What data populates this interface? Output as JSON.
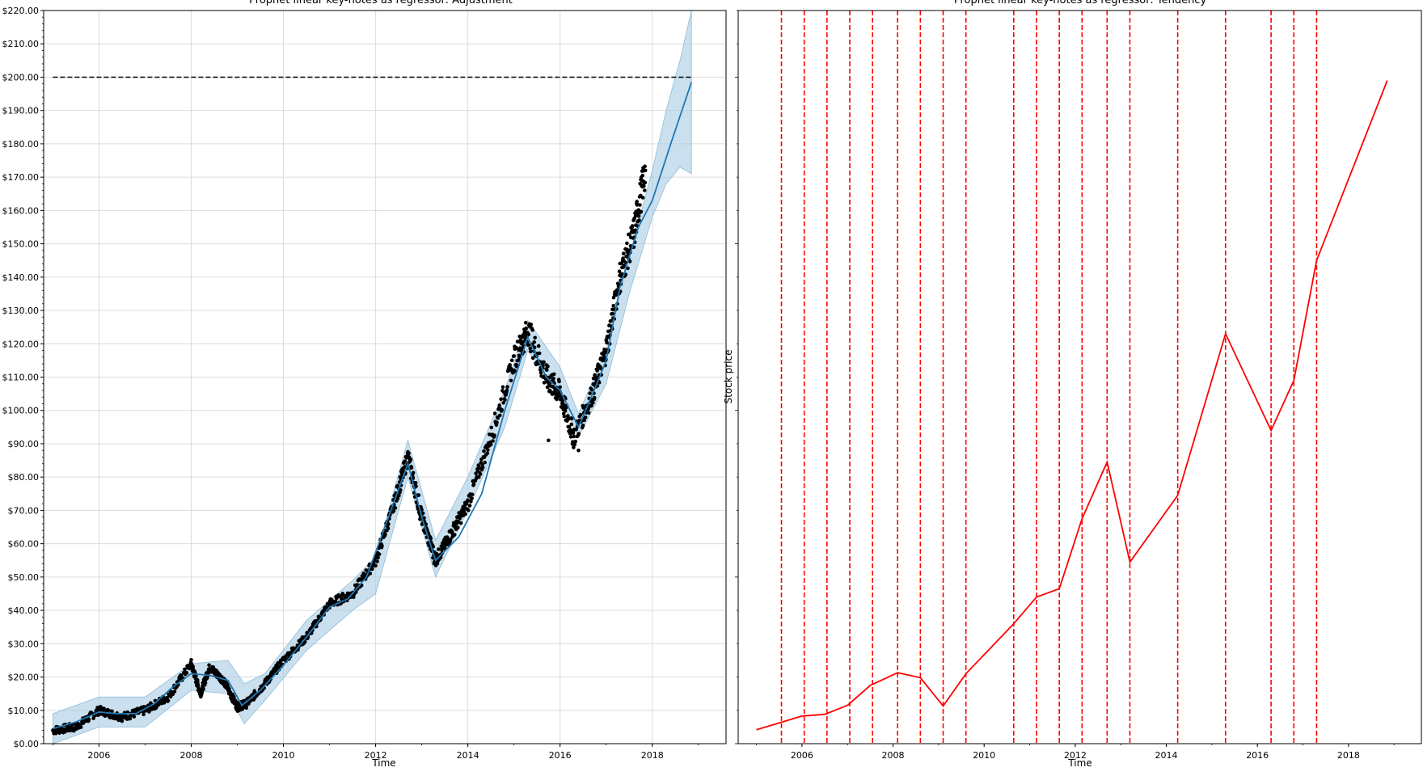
{
  "chart_data": [
    {
      "type": "line",
      "title": "Prophet linear key-notes as regressor: Adjustment",
      "xlabel": "Time",
      "ylabel": "",
      "xlim": [
        2004.8,
        2019.6
      ],
      "ylim": [
        0,
        220
      ],
      "grid": true,
      "y_tick_values": [
        0,
        10,
        20,
        30,
        40,
        50,
        60,
        70,
        80,
        90,
        100,
        110,
        120,
        130,
        140,
        150,
        160,
        170,
        180,
        190,
        200,
        210,
        220
      ],
      "y_tick_labels": [
        "$0.00",
        "$10.00",
        "$20.00",
        "$30.00",
        "$40.00",
        "$50.00",
        "$60.00",
        "$70.00",
        "$80.00",
        "$90.00",
        "$100.00",
        "$110.00",
        "$120.00",
        "$130.00",
        "$140.00",
        "$150.00",
        "$160.00",
        "$170.00",
        "$180.00",
        "$190.00",
        "$200.00",
        "$210.00",
        "$220.00"
      ],
      "x_tick_values": [
        2006,
        2008,
        2010,
        2012,
        2014,
        2016,
        2018
      ],
      "x_tick_labels": [
        "2006",
        "2008",
        "2010",
        "2012",
        "2014",
        "2016",
        "2018"
      ],
      "forecast_line": {
        "color": "#1f77b4",
        "x": [
          2005.0,
          2005.5,
          2006.0,
          2006.4,
          2006.8,
          2007.2,
          2007.6,
          2008.0,
          2008.4,
          2008.8,
          2009.1,
          2009.5,
          2010.0,
          2010.5,
          2011.0,
          2011.4,
          2011.8,
          2012.2,
          2012.7,
          2013.0,
          2013.3,
          2013.8,
          2014.3,
          2014.8,
          2015.3,
          2015.7,
          2016.0,
          2016.4,
          2016.8,
          2017.0,
          2017.3,
          2017.7,
          2018.0,
          2018.4,
          2018.85
        ],
        "y": [
          4.5,
          6.5,
          9.5,
          9.0,
          9.0,
          12.0,
          17.0,
          21.0,
          20.5,
          19.0,
          11.5,
          16.0,
          23.5,
          32.0,
          41.0,
          43.5,
          50.0,
          65.0,
          84.0,
          68.0,
          55.0,
          62.0,
          75.0,
          100.0,
          122.0,
          110.0,
          106.0,
          95.0,
          108.0,
          115.0,
          137.0,
          155.0,
          163.0,
          180.0,
          198.5
        ]
      },
      "uncertainty_band": {
        "color": "#a6cbe3",
        "x": [
          2005.0,
          2006.0,
          2007.0,
          2008.0,
          2008.8,
          2009.15,
          2009.6,
          2010.5,
          2011.5,
          2012.0,
          2012.7,
          2013.3,
          2014.0,
          2014.8,
          2015.3,
          2016.0,
          2016.4,
          2017.0,
          2017.5,
          2018.0,
          2018.3,
          2018.6,
          2018.85
        ],
        "upper": [
          9,
          14,
          14,
          24,
          25,
          18,
          21,
          37,
          49,
          56,
          91,
          61,
          80,
          106,
          127,
          113,
          99,
          118,
          146,
          172,
          190,
          205,
          220
        ],
        "lower": [
          0,
          5,
          5,
          16,
          15,
          6,
          13,
          28,
          40,
          45,
          80,
          50,
          70,
          95,
          118,
          104,
          92,
          108,
          135,
          158,
          168,
          173,
          171
        ]
      },
      "cap_line": {
        "y": 200,
        "x_start": 2005.0,
        "x_end": 2018.85,
        "style": "dashed",
        "color": "#000000"
      },
      "actual_points_series": {
        "color": "#000000",
        "x": [
          2005.0,
          2005.5,
          2006.0,
          2006.5,
          2007.0,
          2007.5,
          2008.0,
          2008.2,
          2008.4,
          2008.7,
          2009.0,
          2009.2,
          2009.6,
          2010.0,
          2010.5,
          2011.0,
          2011.5,
          2012.0,
          2012.4,
          2012.7,
          2013.0,
          2013.3,
          2013.6,
          2014.0,
          2014.5,
          2015.0,
          2015.3,
          2015.7,
          2016.0,
          2016.3,
          2016.7,
          2017.0,
          2017.3,
          2017.6,
          2017.85
        ],
        "y": [
          4.0,
          5.0,
          10.0,
          8.0,
          10.0,
          14.0,
          24.0,
          15.0,
          23.0,
          19.0,
          11.0,
          12.0,
          18.0,
          25.0,
          32.0,
          42.0,
          45.0,
          55.0,
          72.0,
          86.0,
          68.0,
          55.0,
          62.0,
          72.0,
          92.0,
          115.0,
          124.0,
          110.0,
          105.0,
          92.0,
          105.0,
          118.0,
          140.0,
          153.0,
          172.0
        ],
        "outliers": [
          [
            2015.75,
            91
          ],
          [
            2016.4,
            88
          ]
        ]
      }
    },
    {
      "type": "line",
      "title": "Prophet linear key-notes as regressor: Tendency",
      "xlabel": "Time",
      "ylabel": "Stock price",
      "xlim": [
        2004.6,
        2019.6
      ],
      "ylim": [
        0,
        220
      ],
      "grid": false,
      "x_tick_values": [
        2006,
        2008,
        2010,
        2012,
        2014,
        2016,
        2018
      ],
      "x_tick_labels": [
        "2006",
        "2008",
        "2010",
        "2012",
        "2014",
        "2016",
        "2018"
      ],
      "series": [
        {
          "color": "#ff0000",
          "x": [
            2005.0,
            2005.5,
            2006.0,
            2006.5,
            2007.0,
            2007.5,
            2008.1,
            2008.6,
            2009.1,
            2009.6,
            2010.65,
            2011.15,
            2011.65,
            2012.15,
            2012.7,
            2013.2,
            2014.25,
            2015.3,
            2016.3,
            2016.8,
            2017.3,
            2018.85
          ],
          "y": [
            4.2,
            6.2,
            8.3,
            8.8,
            11.5,
            17.5,
            21.3,
            19.8,
            11.3,
            21.0,
            36.0,
            44.0,
            46.5,
            67.5,
            84.5,
            54.5,
            74.5,
            123.0,
            94.0,
            109.0,
            145.0,
            199.0
          ]
        }
      ],
      "changepoints": {
        "color": "#ff0000",
        "style": "dashed",
        "x": [
          2005.55,
          2006.05,
          2006.55,
          2007.05,
          2007.55,
          2008.1,
          2008.6,
          2009.1,
          2009.6,
          2010.65,
          2011.15,
          2011.65,
          2012.15,
          2012.7,
          2013.2,
          2014.25,
          2015.3,
          2016.3,
          2016.8,
          2017.3
        ]
      }
    }
  ]
}
